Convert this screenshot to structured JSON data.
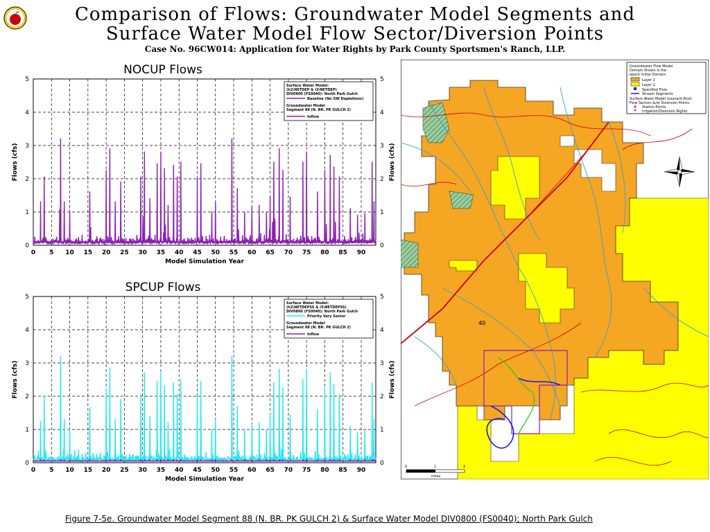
{
  "header": {
    "title_line1": "Comparison of Flows: Groundwater Model Segments and",
    "title_line2": "Surface Water Model Flow Sector/Diversion Points",
    "subtitle": "Case No. 96CW014: Application for Water Rights by Park County Sportsmen's Ranch, LLP."
  },
  "caption": "Figure 7-5e. Groundwater Model Segment 88 (N. BR. PK GULCH 2) & Surface Water Model DIV0800 (FS0040); North Park Gulch",
  "colors": {
    "purple": "#8B1FB3",
    "cyan": "#22E8F0",
    "orange": "#F5A623",
    "yellow": "#FFFF00",
    "red": "#CC0000",
    "blue": "#1A1AE6"
  },
  "chart_data": [
    {
      "type": "line",
      "title": "NOCUP Flows",
      "xlabel": "Model Simulation Year",
      "ylabel": "Flows (cfs)",
      "xlim": [
        0,
        94
      ],
      "ylim": [
        0,
        5
      ],
      "xticks": [
        "0",
        "5",
        "10",
        "15",
        "20",
        "25",
        "30",
        "35",
        "40",
        "45",
        "50",
        "55",
        "60",
        "65",
        "70",
        "75",
        "80",
        "85",
        "90"
      ],
      "yticks": [
        "0",
        "1",
        "2",
        "3",
        "4",
        "5"
      ],
      "legend": {
        "group1": [
          "Surface Water Model:",
          "(h2\\NETDEP & i3\\NETDEP)",
          "DIV0800 (FS0040): North Park Gulch"
        ],
        "line1": "Baseline (No GW Depletions)",
        "group2": [
          "Groundwater Model",
          "Segment 88 (N. BR. PK GULCH 2)"
        ],
        "line2": "Inflow"
      },
      "series": [
        {
          "name": "Baseline (No GW Depletions)",
          "peaks": [
            [
              2,
              1.3
            ],
            [
              3,
              2.05
            ],
            [
              7.5,
              3.2
            ],
            [
              8.5,
              1.3
            ],
            [
              10,
              1.0
            ],
            [
              15.5,
              1.6
            ],
            [
              20,
              2.25
            ],
            [
              21,
              2.9
            ],
            [
              22.5,
              1.3
            ],
            [
              24,
              1.9
            ],
            [
              29.5,
              2.05
            ],
            [
              30.5,
              2.8
            ],
            [
              32,
              1.4
            ],
            [
              34,
              2.45
            ],
            [
              35,
              2.8
            ],
            [
              36,
              2.3
            ],
            [
              37,
              1.2
            ],
            [
              38.5,
              2.4
            ],
            [
              39.5,
              2.05
            ],
            [
              40.5,
              2.5
            ],
            [
              45,
              2.0
            ],
            [
              46,
              2.45
            ],
            [
              49,
              1.0
            ],
            [
              50,
              1.3
            ],
            [
              54.5,
              3.2
            ],
            [
              56,
              1.7
            ],
            [
              58,
              1.0
            ],
            [
              60,
              1.15
            ],
            [
              62,
              1.2
            ],
            [
              64,
              1.0
            ],
            [
              65,
              1.45
            ],
            [
              66,
              2.5
            ],
            [
              67.5,
              2.9
            ],
            [
              68.5,
              2.25
            ],
            [
              70.5,
              1.45
            ],
            [
              74,
              2.5
            ],
            [
              75,
              2.8
            ],
            [
              78,
              1.6
            ],
            [
              80,
              2.25
            ],
            [
              81.5,
              2.7
            ],
            [
              82.5,
              2.35
            ],
            [
              84,
              2.05
            ],
            [
              87,
              1.1
            ],
            [
              89,
              0.9
            ],
            [
              91,
              0.95
            ],
            [
              93,
              2.5
            ],
            [
              93.5,
              1.3
            ]
          ]
        },
        {
          "name": "Inflow",
          "level": 0.1
        }
      ]
    },
    {
      "type": "line",
      "title": "SPCUP Flows",
      "xlabel": "Model Simulation Year",
      "ylabel": "Flows (cfs)",
      "xlim": [
        0,
        94
      ],
      "ylim": [
        0,
        5
      ],
      "xticks": [
        "0",
        "5",
        "10",
        "15",
        "20",
        "25",
        "30",
        "35",
        "40",
        "45",
        "50",
        "55",
        "60",
        "65",
        "70",
        "75",
        "80",
        "85",
        "90"
      ],
      "yticks": [
        "0",
        "1",
        "2",
        "3",
        "4",
        "5"
      ],
      "legend": {
        "group1": [
          "Surface Water Model:",
          "(h2\\NETDEPSS & i3\\NETDEPSS)",
          "DIV0800 (FS0040): North Park Gulch"
        ],
        "line1": "Priority Very Senior",
        "group2": [
          "Groundwater Model",
          "Segment 88 (N. BR. PK GULCH 2)"
        ],
        "line2": "Inflow"
      },
      "series": [
        {
          "name": "Priority Very Senior",
          "peaks": [
            [
              2,
              1.25
            ],
            [
              3,
              2.0
            ],
            [
              7.5,
              3.2
            ],
            [
              8.5,
              1.3
            ],
            [
              10,
              1.0
            ],
            [
              15.5,
              1.65
            ],
            [
              20,
              2.2
            ],
            [
              21,
              2.85
            ],
            [
              22.5,
              1.3
            ],
            [
              24,
              1.9
            ],
            [
              29.5,
              2.05
            ],
            [
              30.5,
              2.7
            ],
            [
              32,
              1.4
            ],
            [
              34,
              2.45
            ],
            [
              35,
              2.7
            ],
            [
              36,
              2.3
            ],
            [
              37,
              1.2
            ],
            [
              38.5,
              2.4
            ],
            [
              39.5,
              2.05
            ],
            [
              40.5,
              2.5
            ],
            [
              45,
              2.0
            ],
            [
              46,
              2.45
            ],
            [
              49,
              1.0
            ],
            [
              50,
              1.3
            ],
            [
              54.5,
              3.2
            ],
            [
              56,
              1.7
            ],
            [
              58,
              1.0
            ],
            [
              60,
              1.15
            ],
            [
              62,
              1.2
            ],
            [
              64,
              1.0
            ],
            [
              65,
              1.45
            ],
            [
              66,
              2.4
            ],
            [
              67.5,
              2.8
            ],
            [
              68.5,
              2.25
            ],
            [
              70.5,
              1.45
            ],
            [
              74,
              2.5
            ],
            [
              75,
              2.8
            ],
            [
              78,
              1.6
            ],
            [
              80,
              2.25
            ],
            [
              81.5,
              2.7
            ],
            [
              82.5,
              2.35
            ],
            [
              84,
              2.05
            ],
            [
              87,
              1.1
            ],
            [
              89,
              0.9
            ],
            [
              91,
              0.95
            ],
            [
              93,
              2.4
            ],
            [
              93.5,
              1.3
            ]
          ]
        },
        {
          "name": "Inflow",
          "level": 0.05
        }
      ]
    }
  ],
  "map": {
    "legend": {
      "title": [
        "Groundwater Flow Model",
        "Domain Shown is the",
        "epoch Initial Domain:"
      ],
      "layer1": "Layer 1",
      "layer2": "Layer 2",
      "specified_flow": "Specified Flow",
      "stream_segments": "Stream Segments",
      "sw_title": [
        "Surface Water Model (Leonard Rice)",
        "Flow Sectors &/or Diversion Points:"
      ],
      "station_points": "Station Points",
      "irrigation": "Irrigation/Diversion Rights"
    },
    "label_40": "40",
    "scale": {
      "zero": "0",
      "one": "1",
      "two": "2",
      "unit": "miles"
    }
  }
}
